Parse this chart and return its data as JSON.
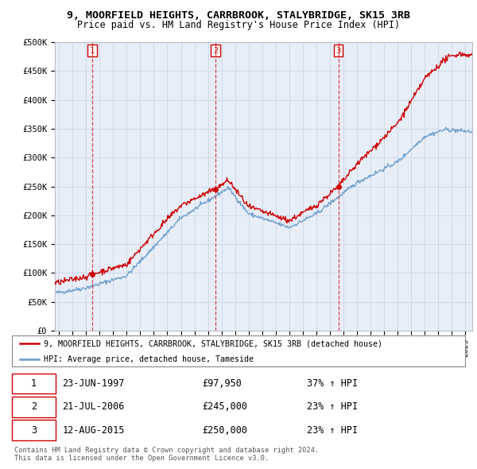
{
  "title1": "9, MOORFIELD HEIGHTS, CARRBROOK, STALYBRIDGE, SK15 3RB",
  "title2": "Price paid vs. HM Land Registry's House Price Index (HPI)",
  "ylim": [
    0,
    500000
  ],
  "yticks": [
    0,
    50000,
    100000,
    150000,
    200000,
    250000,
    300000,
    350000,
    400000,
    450000,
    500000
  ],
  "ytick_labels": [
    "£0",
    "£50K",
    "£100K",
    "£150K",
    "£200K",
    "£250K",
    "£300K",
    "£350K",
    "£400K",
    "£450K",
    "£500K"
  ],
  "xlim_start": 1994.7,
  "xlim_end": 2025.5,
  "transactions": [
    {
      "num": 1,
      "date": "23-JUN-1997",
      "price": 97950,
      "price_str": "£97,950",
      "hpi_change": "37% ↑ HPI",
      "year": 1997.47
    },
    {
      "num": 2,
      "date": "21-JUL-2006",
      "price": 245000,
      "price_str": "£245,000",
      "hpi_change": "23% ↑ HPI",
      "year": 2006.55
    },
    {
      "num": 3,
      "date": "12-AUG-2015",
      "price": 250000,
      "price_str": "£250,000",
      "hpi_change": "23% ↑ HPI",
      "year": 2015.62
    }
  ],
  "legend_line1": "9, MOORFIELD HEIGHTS, CARRBROOK, STALYBRIDGE, SK15 3RB (detached house)",
  "legend_line2": "HPI: Average price, detached house, Tameside",
  "footer1": "Contains HM Land Registry data © Crown copyright and database right 2024.",
  "footer2": "This data is licensed under the Open Government Licence v3.0.",
  "red_color": "#cc0000",
  "blue_color": "#6699cc",
  "dashed_color": "#cc0000",
  "bg_color": "#ffffff",
  "grid_color": "#d0d8e8",
  "plot_bg": "#e8eef8"
}
